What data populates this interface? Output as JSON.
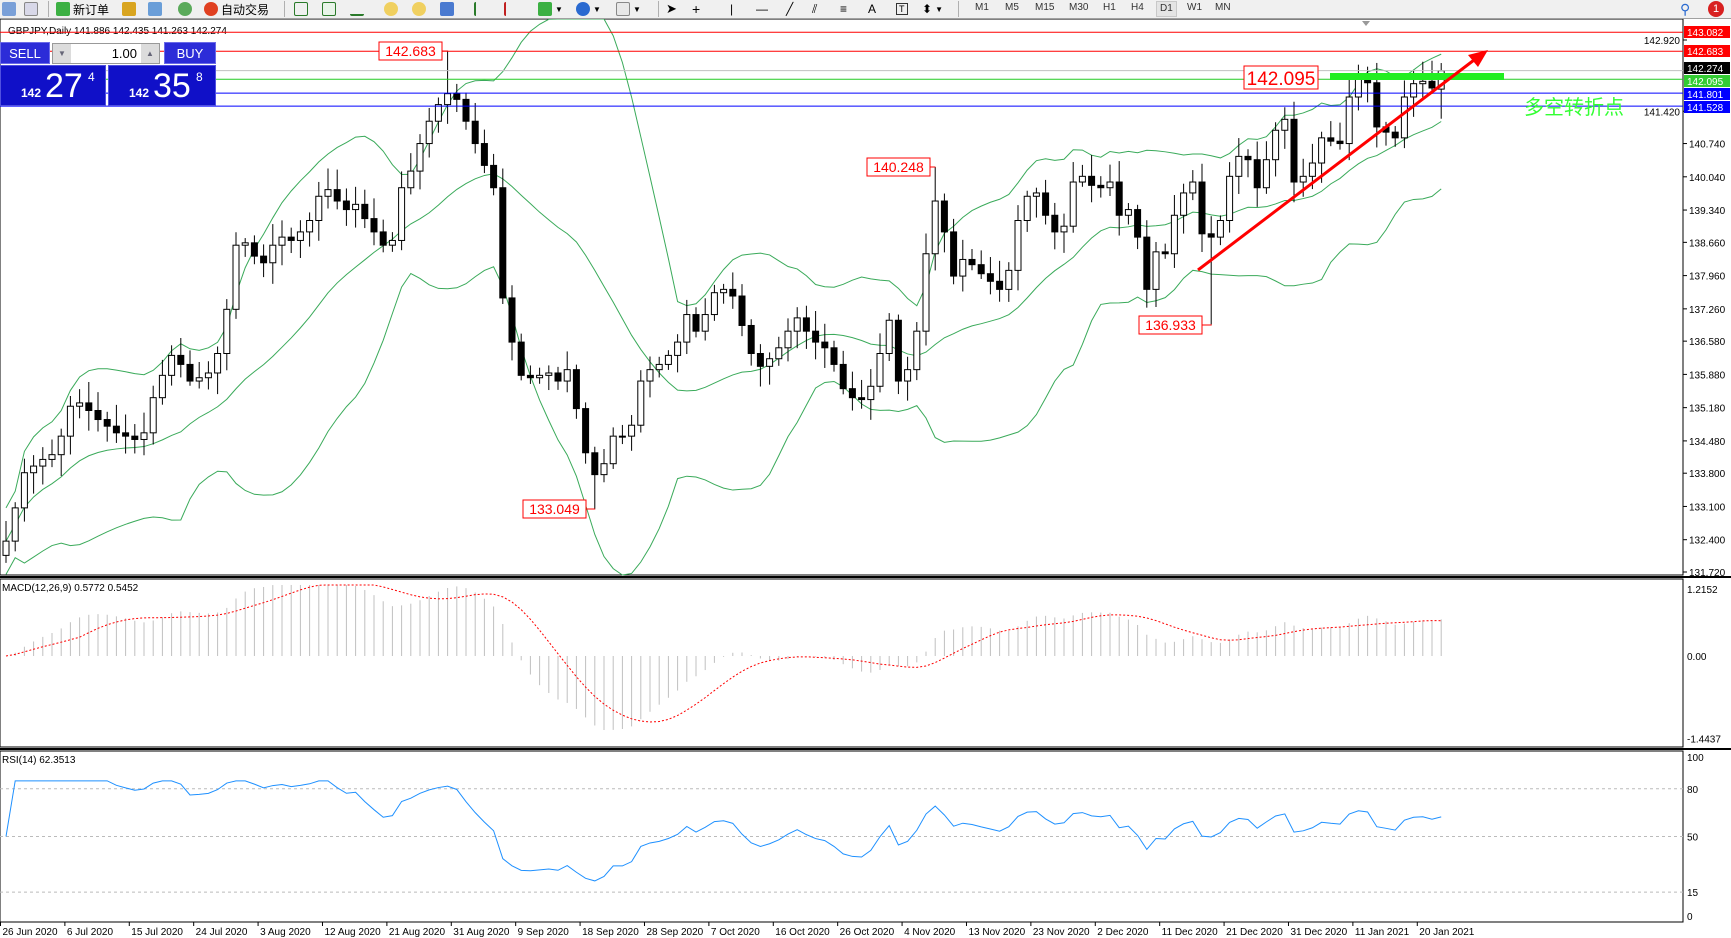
{
  "toolbar": {
    "new_order": "新订单",
    "auto_trading": "自动交易",
    "periods": [
      "M1",
      "M5",
      "M15",
      "M30",
      "H1",
      "H4",
      "D1",
      "W1",
      "MN"
    ],
    "active_period": "D1",
    "notification_count": "1"
  },
  "chart": {
    "title": "GBPJPY,Daily  141.886 142.435 141.263 142.274",
    "symbol": "GBPJPY",
    "timeframe": "Daily",
    "last_bar": {
      "open": 141.886,
      "high": 142.435,
      "low": 141.263,
      "close": 142.274
    },
    "price_ticks": [
      "142.920",
      "141.420",
      "140.740",
      "140.040",
      "139.340",
      "138.660",
      "137.960",
      "137.260",
      "136.580",
      "135.880",
      "135.180",
      "134.480",
      "133.800",
      "133.100",
      "132.400",
      "131.720"
    ],
    "price_range": [
      131.72,
      143.082
    ],
    "hlines": [
      {
        "price": "143.082",
        "color": "#ff0000"
      },
      {
        "price": "142.683",
        "color": "#ff0000"
      },
      {
        "price": "142.274",
        "color": "#c0c0c0",
        "axis_bg": "#000000"
      },
      {
        "price": "142.095",
        "color": "#22cc22",
        "axis_bg": "#33cc33"
      },
      {
        "price": "141.801",
        "color": "#0000ff"
      },
      {
        "price": "141.528",
        "color": "#0000ff"
      }
    ],
    "price_labels": [
      "142.683",
      "133.049",
      "140.248",
      "136.933",
      "142.095"
    ],
    "annotation": "多空转折点",
    "annotation_color": "#33ff33",
    "trend_arrow_color": "#ff0000",
    "dates": [
      "26 Jun 2020",
      "6 Jul 2020",
      "15 Jul 2020",
      "24 Jul 2020",
      "3 Aug 2020",
      "12 Aug 2020",
      "21 Aug 2020",
      "31 Aug 2020",
      "9 Sep 2020",
      "18 Sep 2020",
      "28 Sep 2020",
      "7 Oct 2020",
      "16 Oct 2020",
      "26 Oct 2020",
      "4 Nov 2020",
      "13 Nov 2020",
      "23 Nov 2020",
      "2 Dec 2020",
      "11 Dec 2020",
      "21 Dec 2020",
      "31 Dec 2020",
      "11 Jan 2021",
      "20 Jan 2021"
    ],
    "closes": [
      132.37,
      133.07,
      133.81,
      133.95,
      134.09,
      134.19,
      134.58,
      135.21,
      135.28,
      135.12,
      134.93,
      134.79,
      134.65,
      134.58,
      134.51,
      134.65,
      135.39,
      135.86,
      136.28,
      136.09,
      135.74,
      135.81,
      135.91,
      136.32,
      137.25,
      138.6,
      138.65,
      138.37,
      138.23,
      138.6,
      138.77,
      138.7,
      138.88,
      139.12,
      139.63,
      139.77,
      139.53,
      139.35,
      139.46,
      139.16,
      138.88,
      138.6,
      138.7,
      139.81,
      140.16,
      140.74,
      141.21,
      141.56,
      141.79,
      141.67,
      141.21,
      140.74,
      140.28,
      139.81,
      137.49,
      136.56,
      135.86,
      135.81,
      135.86,
      135.91,
      135.74,
      135.98,
      135.16,
      134.23,
      133.77,
      134.0,
      134.58,
      134.58,
      134.81,
      135.74,
      135.98,
      136.09,
      136.28,
      136.56,
      137.14,
      136.79,
      137.14,
      137.6,
      137.67,
      137.53,
      136.91,
      136.32,
      136.05,
      136.21,
      136.44,
      136.79,
      137.07,
      136.79,
      136.56,
      136.44,
      136.09,
      135.58,
      135.39,
      135.35,
      135.63,
      136.32,
      137.02,
      135.74,
      135.98,
      136.79,
      138.42,
      139.53,
      138.88,
      137.95,
      138.3,
      138.19,
      138.0,
      137.84,
      137.67,
      138.07,
      139.12,
      139.63,
      139.7,
      139.23,
      138.88,
      139.0,
      139.93,
      140.05,
      139.86,
      139.81,
      139.93,
      139.23,
      139.35,
      138.77,
      137.67,
      138.46,
      138.42,
      139.23,
      139.7,
      139.93,
      138.84,
      138.77,
      139.12,
      140.05,
      140.47,
      140.4,
      139.81,
      140.4,
      141.02,
      141.25,
      139.93,
      140.05,
      140.33,
      140.86,
      140.79,
      140.74,
      141.72,
      142.09,
      142.02,
      141.09,
      140.98,
      140.86,
      141.72,
      142.0,
      142.05,
      141.91,
      142.274
    ]
  },
  "macd": {
    "label": "MACD(12,26,9) 0.5772 0.5452",
    "ticks": [
      "1.2152",
      "0.00",
      "-1.4437"
    ],
    "range": [
      -1.4437,
      1.2152
    ],
    "signal_color": "#ff0000",
    "hist_color": "#c0c0c0"
  },
  "rsi": {
    "label": "RSI(14) 62.3513",
    "ticks": [
      "100",
      "80",
      "50",
      "15",
      "0"
    ],
    "levels": [
      80,
      50,
      15
    ],
    "line_color": "#1e90ff"
  },
  "trade_panel": {
    "sell": "SELL",
    "buy": "BUY",
    "lots": "1.00",
    "bid": {
      "big": "142",
      "main": "27",
      "sup": "4"
    },
    "ask": {
      "big": "142",
      "main": "35",
      "sup": "8"
    }
  }
}
